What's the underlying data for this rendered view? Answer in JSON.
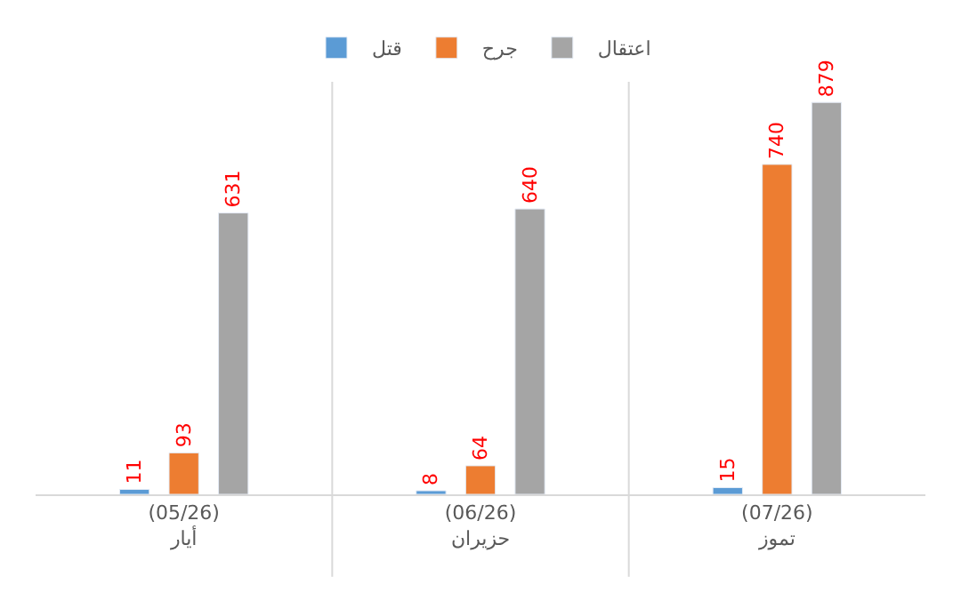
{
  "chart_data": {
    "type": "bar",
    "categories": [
      "(05/26)\nأيار",
      "(06/26)\nحزيران",
      "(07/26)\nتموز"
    ],
    "series": [
      {
        "name": "قتل",
        "color": "#5b9bd5",
        "values": [
          11,
          8,
          15
        ]
      },
      {
        "name": "جرح",
        "color": "#ed7d31",
        "values": [
          93,
          64,
          740
        ]
      },
      {
        "name": "اعتقال",
        "color": "#a5a5a5",
        "values": [
          631,
          640,
          879
        ]
      }
    ],
    "data_labels": true,
    "legend": "top"
  }
}
